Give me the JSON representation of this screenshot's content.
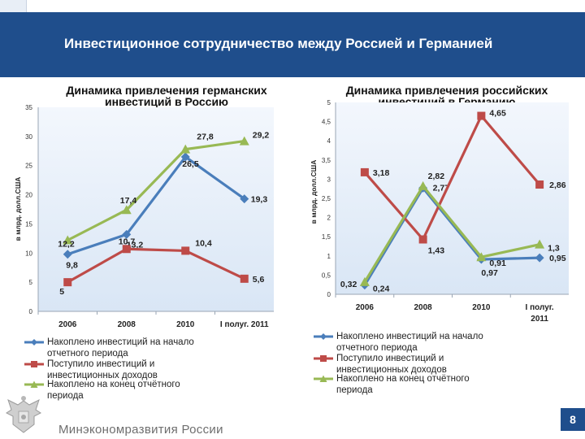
{
  "slide": {
    "title": "Инвестиционное сотрудничество между Россией и Германией",
    "footer": "Минэкономразвития России",
    "page_number": "8"
  },
  "chart_data": [
    {
      "type": "line",
      "title_line1": "Динамика привлечения германских",
      "title_line2": "инвестиций в Россию",
      "ylabel": "в млрд. долл.США",
      "ylim": [
        0,
        35
      ],
      "yticks": [
        "0",
        "5",
        "10",
        "15",
        "20",
        "25",
        "30",
        "35"
      ],
      "categories": [
        "2006",
        "2008",
        "2010",
        "I полуг. 2011"
      ],
      "series": [
        {
          "name": "Накоплено инвестиций на начало отчетного периода",
          "color": "#4a7ebb",
          "marker": "diamond",
          "values": [
            9.8,
            13.2,
            26.5,
            19.3
          ],
          "labels": [
            "9,8",
            "13,2",
            "26,5",
            "19,3"
          ]
        },
        {
          "name": "Поступило инвестиций и инвестиционных доходов",
          "color": "#be4b48",
          "marker": "square",
          "values": [
            5,
            10.7,
            10.4,
            5.6
          ],
          "labels": [
            "5",
            "10,7",
            "10,4",
            "5,6"
          ]
        },
        {
          "name": "Накоплено на конец отчётного периода",
          "color": "#98b954",
          "marker": "triangle",
          "values": [
            12.2,
            17.4,
            27.8,
            29.2
          ],
          "labels": [
            "12,2",
            "17,4",
            "27,8",
            "29,2"
          ]
        }
      ]
    },
    {
      "type": "line",
      "title_line1": "Динамика привлечения российских",
      "title_line2": "инвестиций в Германию",
      "ylabel": "в млрд. долл.США",
      "ylim": [
        0,
        5
      ],
      "yticks": [
        "0",
        "0,5",
        "1",
        "1,5",
        "2",
        "2,5",
        "3",
        "3,5",
        "4",
        "4,5",
        "5"
      ],
      "categories": [
        "2006",
        "2008",
        "2010",
        "I полуг. 2011"
      ],
      "series": [
        {
          "name": "Накоплено инвестиций на начало отчетного периода",
          "color": "#4a7ebb",
          "marker": "diamond",
          "values": [
            0.24,
            2.77,
            0.91,
            0.95
          ],
          "labels": [
            "0,24",
            "2,77",
            "0,91",
            "0,95"
          ]
        },
        {
          "name": "Поступило инвестиций и инвестиционных доходов",
          "color": "#be4b48",
          "marker": "square",
          "values": [
            3.18,
            1.43,
            4.65,
            2.86
          ],
          "labels": [
            "3,18",
            "1,43",
            "4,65",
            "2,86"
          ]
        },
        {
          "name": "Накоплено на конец отчётного периода",
          "color": "#98b954",
          "marker": "triangle",
          "values": [
            0.32,
            2.82,
            0.97,
            1.3
          ],
          "labels": [
            "0,32",
            "2,82",
            "0,97",
            "1,3"
          ]
        }
      ]
    }
  ]
}
